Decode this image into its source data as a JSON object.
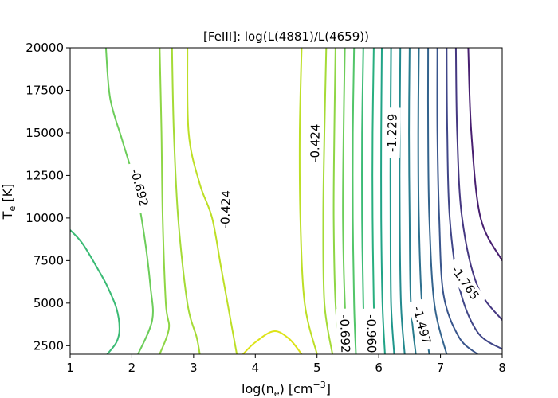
{
  "chart_data": {
    "type": "contour",
    "title": "[FeIII]: log(L(4881)/L(4659))",
    "xlabel": {
      "main": "log(n",
      "sub": "e",
      "tail": ") [cm",
      "sup": "−3",
      "end": "]"
    },
    "ylabel": {
      "main": "T",
      "sub": "e",
      "tail": " [K]"
    },
    "xlim": [
      1,
      8
    ],
    "ylim": [
      2000,
      20000
    ],
    "xticks": [
      1,
      2,
      3,
      4,
      5,
      6,
      7,
      8
    ],
    "xtick_labels": [
      "1",
      "2",
      "3",
      "4",
      "5",
      "6",
      "7",
      "8"
    ],
    "yticks": [
      2500,
      5000,
      7500,
      10000,
      12500,
      15000,
      17500,
      20000
    ],
    "ytick_labels": [
      "2500",
      "5000",
      "7500",
      "10000",
      "12500",
      "15000",
      "17500",
      "20000"
    ],
    "contours": [
      {
        "level": "-0.335",
        "color": "#dde318",
        "points": [
          [
            3.8,
            2000
          ],
          [
            4.0,
            2700
          ],
          [
            4.3,
            3350
          ],
          [
            4.55,
            2900
          ],
          [
            4.75,
            2000
          ]
        ]
      },
      {
        "level": "-0.424",
        "color": "#bddf26",
        "points": [
          [
            2.9,
            20000
          ],
          [
            2.92,
            15000
          ],
          [
            3.1,
            12000
          ],
          [
            3.3,
            10000
          ],
          [
            3.45,
            7000
          ],
          [
            3.6,
            4000
          ],
          [
            3.7,
            2000
          ]
        ]
      },
      {
        "level": "-0.424",
        "color": "#bddf26",
        "points": [
          [
            4.75,
            20000
          ],
          [
            4.72,
            15000
          ],
          [
            4.73,
            10000
          ],
          [
            4.8,
            5000
          ],
          [
            5.0,
            2000
          ]
        ]
      },
      {
        "level": "-0.513",
        "color": "#a5db36",
        "points": [
          [
            2.65,
            20000
          ],
          [
            2.68,
            15000
          ],
          [
            2.75,
            10000
          ],
          [
            2.9,
            5000
          ],
          [
            3.05,
            3000
          ],
          [
            3.1,
            2000
          ]
        ]
      },
      {
        "level": "-0.513",
        "color": "#a5db36",
        "points": [
          [
            5.15,
            20000
          ],
          [
            5.12,
            15000
          ],
          [
            5.1,
            10000
          ],
          [
            5.12,
            5000
          ],
          [
            5.25,
            2000
          ]
        ]
      },
      {
        "level": "-0.603",
        "color": "#8ed645",
        "points": [
          [
            2.45,
            20000
          ],
          [
            2.48,
            15000
          ],
          [
            2.5,
            10000
          ],
          [
            2.55,
            5000
          ],
          [
            2.6,
            3500
          ],
          [
            2.45,
            2000
          ]
        ]
      },
      {
        "level": "-0.603",
        "color": "#8ed645",
        "points": [
          [
            5.3,
            20000
          ],
          [
            5.28,
            15000
          ],
          [
            5.27,
            10000
          ],
          [
            5.3,
            5000
          ],
          [
            5.38,
            2000
          ]
        ]
      },
      {
        "level": "-0.692",
        "color": "#6ccd5a",
        "points": [
          [
            1.58,
            20000
          ],
          [
            1.65,
            17000
          ],
          [
            1.85,
            14500
          ],
          [
            2.05,
            12000
          ],
          [
            2.2,
            9000
          ],
          [
            2.3,
            6000
          ],
          [
            2.33,
            4000
          ],
          [
            2.1,
            2000
          ]
        ]
      },
      {
        "level": "-0.692",
        "color": "#6ccd5a",
        "points": [
          [
            5.45,
            20000
          ],
          [
            5.43,
            15000
          ],
          [
            5.42,
            10000
          ],
          [
            5.45,
            5000
          ],
          [
            5.5,
            2000
          ]
        ]
      },
      {
        "level": "-0.781",
        "color": "#52c569",
        "points": [
          [
            5.6,
            20000
          ],
          [
            5.58,
            15000
          ],
          [
            5.58,
            10000
          ],
          [
            5.6,
            5000
          ],
          [
            5.63,
            2000
          ]
        ]
      },
      {
        "level": "-0.871",
        "color": "#3bbb75",
        "points": [
          [
            1.0,
            9300
          ],
          [
            1.2,
            8500
          ],
          [
            1.45,
            7000
          ],
          [
            1.6,
            6000
          ],
          [
            1.75,
            4700
          ],
          [
            1.8,
            3500
          ],
          [
            1.75,
            2700
          ],
          [
            1.6,
            2000
          ]
        ]
      },
      {
        "level": "-0.871",
        "color": "#3bbb75",
        "points": [
          [
            5.75,
            20000
          ],
          [
            5.73,
            15000
          ],
          [
            5.73,
            10000
          ],
          [
            5.75,
            5000
          ],
          [
            5.78,
            2000
          ]
        ]
      },
      {
        "level": "-0.960",
        "color": "#29af7f",
        "points": [
          [
            5.92,
            20000
          ],
          [
            5.9,
            15000
          ],
          [
            5.9,
            10000
          ],
          [
            5.92,
            5000
          ],
          [
            5.95,
            2000
          ]
        ]
      },
      {
        "level": "-1.050",
        "color": "#20a386",
        "points": [
          [
            6.05,
            20000
          ],
          [
            6.04,
            15000
          ],
          [
            6.04,
            10000
          ],
          [
            6.06,
            5000
          ],
          [
            6.1,
            2000
          ]
        ]
      },
      {
        "level": "-1.139",
        "color": "#1f968b",
        "points": [
          [
            6.2,
            20000
          ],
          [
            6.19,
            15000
          ],
          [
            6.19,
            10000
          ],
          [
            6.2,
            5000
          ],
          [
            6.25,
            2000
          ]
        ]
      },
      {
        "level": "-1.229",
        "color": "#23898e",
        "points": [
          [
            6.35,
            20000
          ],
          [
            6.34,
            15000
          ],
          [
            6.34,
            10000
          ],
          [
            6.36,
            5000
          ],
          [
            6.42,
            2000
          ]
        ]
      },
      {
        "level": "-1.318",
        "color": "#287c8e",
        "points": [
          [
            6.5,
            20000
          ],
          [
            6.49,
            15000
          ],
          [
            6.5,
            10000
          ],
          [
            6.52,
            5000
          ],
          [
            6.6,
            2000
          ]
        ]
      },
      {
        "level": "-1.407",
        "color": "#2d6f8e",
        "points": [
          [
            6.65,
            20000
          ],
          [
            6.64,
            15000
          ],
          [
            6.65,
            10000
          ],
          [
            6.7,
            5000
          ],
          [
            6.82,
            2000
          ]
        ]
      },
      {
        "level": "-1.497",
        "color": "#33638d",
        "points": [
          [
            6.8,
            20000
          ],
          [
            6.8,
            15000
          ],
          [
            6.82,
            10000
          ],
          [
            6.9,
            5000
          ],
          [
            7.1,
            2000
          ]
        ]
      },
      {
        "level": "-1.586",
        "color": "#39558c",
        "points": [
          [
            6.95,
            20000
          ],
          [
            6.95,
            15000
          ],
          [
            6.98,
            10000
          ],
          [
            7.05,
            5500
          ],
          [
            7.3,
            3000
          ],
          [
            7.6,
            2000
          ]
        ]
      },
      {
        "level": "-1.676",
        "color": "#404688",
        "points": [
          [
            7.1,
            20000
          ],
          [
            7.11,
            15000
          ],
          [
            7.15,
            10000
          ],
          [
            7.3,
            6000
          ],
          [
            7.6,
            3300
          ],
          [
            8.0,
            2300
          ]
        ]
      },
      {
        "level": "-1.765",
        "color": "#453781",
        "points": [
          [
            7.25,
            20000
          ],
          [
            7.27,
            15000
          ],
          [
            7.35,
            10000
          ],
          [
            7.6,
            6000
          ],
          [
            8.0,
            4000
          ]
        ]
      },
      {
        "level": "-1.855",
        "color": "#481f70",
        "points": [
          [
            7.45,
            20000
          ],
          [
            7.5,
            15000
          ],
          [
            7.65,
            10000
          ],
          [
            8.0,
            7500
          ]
        ]
      }
    ],
    "labels": [
      {
        "text": "-0.692",
        "x": 2.12,
        "y": 11800,
        "rotation": 75,
        "color": "#000000"
      },
      {
        "text": "-0.424",
        "x": 3.52,
        "y": 10500,
        "rotation": -88,
        "color": "#000000"
      },
      {
        "text": "-0.424",
        "x": 4.97,
        "y": 14400,
        "rotation": -89,
        "color": "#000000"
      },
      {
        "text": "-1.229",
        "x": 6.22,
        "y": 15000,
        "rotation": -89,
        "color": "#000000"
      },
      {
        "text": "-0.692",
        "x": 5.45,
        "y": 3200,
        "rotation": 88,
        "color": "#000000"
      },
      {
        "text": "-0.960",
        "x": 5.88,
        "y": 3200,
        "rotation": 89,
        "color": "#000000"
      },
      {
        "text": "-1.497",
        "x": 6.7,
        "y": 3700,
        "rotation": 75,
        "color": "#000000"
      },
      {
        "text": "-1.765",
        "x": 7.4,
        "y": 6200,
        "rotation": 55,
        "color": "#000000"
      }
    ]
  }
}
